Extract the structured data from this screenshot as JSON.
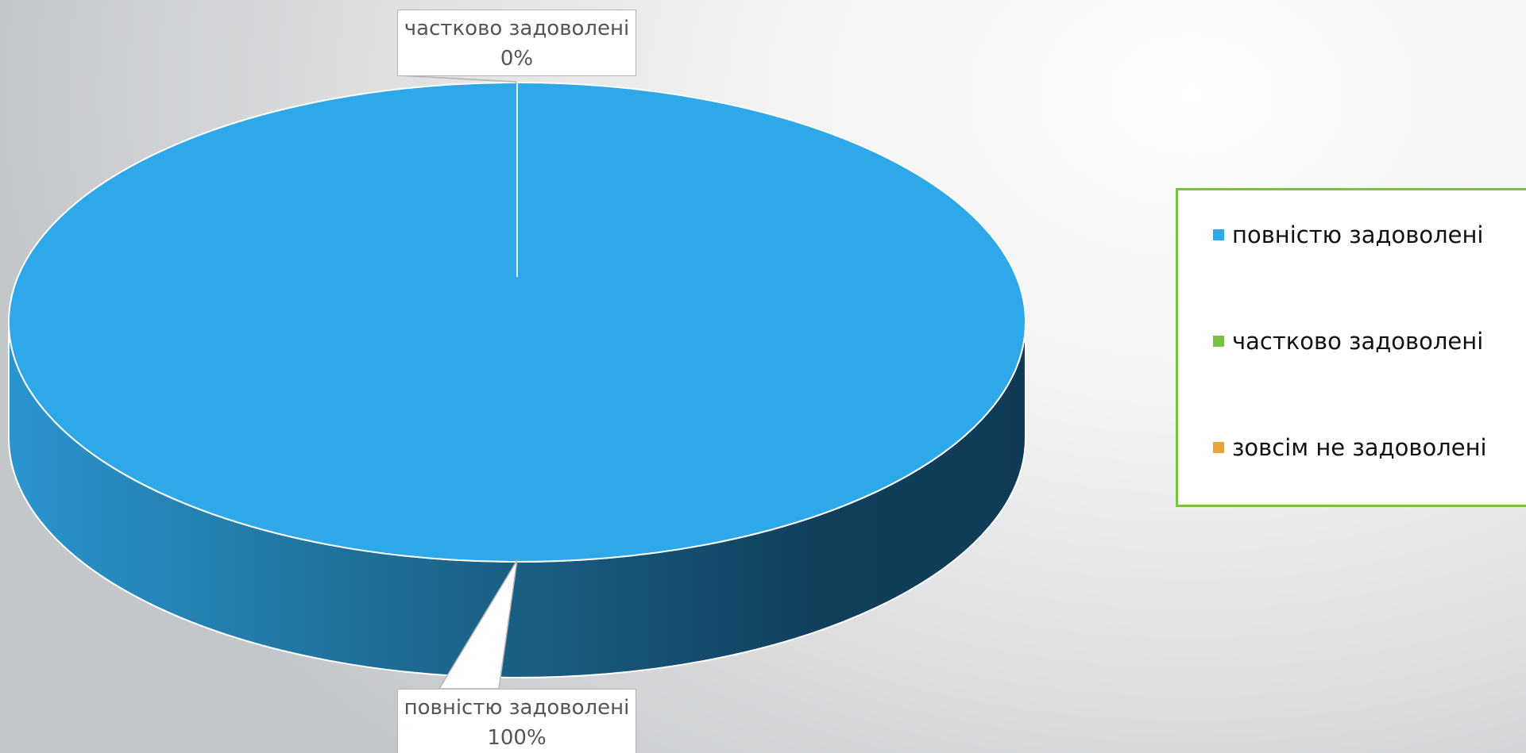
{
  "chart_data": {
    "type": "pie",
    "categories": [
      "повністю задоволені",
      "частково задоволені",
      "зовсім не задоволені"
    ],
    "values": [
      100,
      0,
      0
    ],
    "data_labels": [
      {
        "category": "частково задоволені",
        "text": "0%"
      },
      {
        "category": "повністю задоволені",
        "text": "100%"
      }
    ],
    "legend_position": "right",
    "colors": {
      "повністю задоволені": "#2fa8e9",
      "частково задоволені": "#7ac143",
      "зовсім не задоволені": "#e8a33d"
    },
    "style": "3d"
  },
  "legend": {
    "border_color": "#7ac143",
    "items": [
      {
        "label": "повністю задоволені",
        "color": "#2fa8e9"
      },
      {
        "label": "частково задоволені",
        "color": "#7ac143"
      },
      {
        "label": "зовсім не задоволені",
        "color": "#e8a33d"
      }
    ]
  }
}
